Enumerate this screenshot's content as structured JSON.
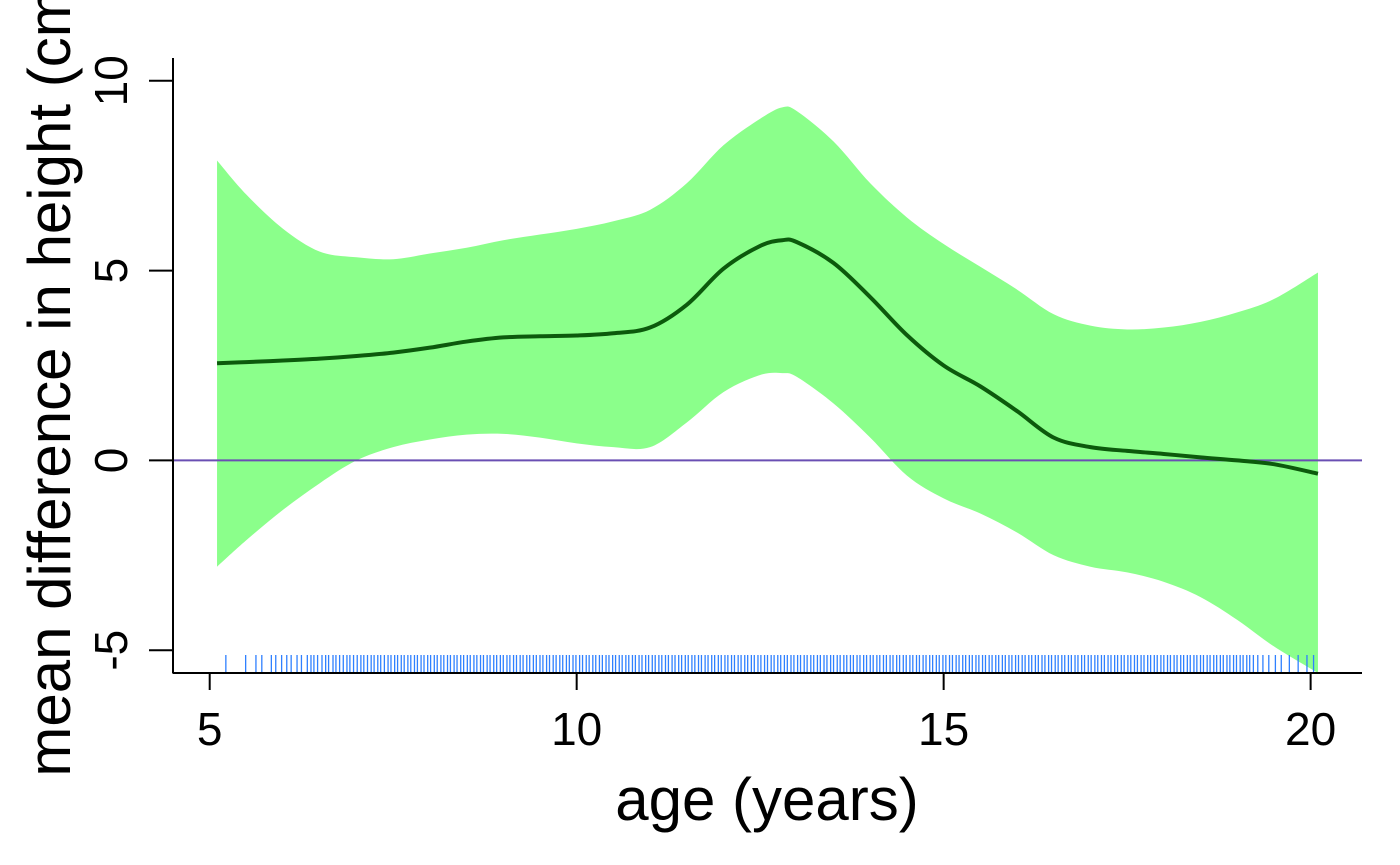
{
  "chart_data": {
    "type": "line",
    "title": "",
    "xlabel": "age (years)",
    "ylabel": "mean difference in height (cm)",
    "xlim": [
      4.5,
      20.7
    ],
    "ylim": [
      -5.6,
      10.6
    ],
    "xticks": [
      5,
      10,
      15,
      20
    ],
    "yticks": [
      -5,
      0,
      5,
      10
    ],
    "grid": false,
    "reference_line": {
      "y": 0,
      "color": "#6a4fb3"
    },
    "colors": {
      "band": "#8bff8b",
      "line": "#0c5a0c",
      "rug": "#2f80ff"
    },
    "series": [
      {
        "x": [
          5.1,
          5.5,
          6,
          6.5,
          7,
          7.5,
          8,
          8.5,
          9,
          9.5,
          10,
          10.5,
          11,
          11.5,
          12,
          12.5,
          12.8,
          13,
          13.5,
          14,
          14.5,
          15,
          15.5,
          16,
          16.5,
          17,
          17.5,
          18,
          18.5,
          19,
          19.5,
          20.1
        ],
        "values": [
          2.56,
          2.59,
          2.63,
          2.68,
          2.75,
          2.84,
          2.97,
          3.13,
          3.24,
          3.27,
          3.29,
          3.35,
          3.5,
          4.1,
          5.05,
          5.65,
          5.8,
          5.75,
          5.2,
          4.3,
          3.3,
          2.5,
          1.95,
          1.3,
          0.6,
          0.35,
          0.25,
          0.17,
          0.08,
          0.0,
          -0.1,
          -0.35
        ]
      }
    ],
    "band": {
      "x": [
        5.1,
        5.5,
        6,
        6.5,
        7,
        7.5,
        8,
        8.5,
        9,
        9.5,
        10,
        10.5,
        11,
        11.5,
        12,
        12.5,
        12.8,
        13,
        13.5,
        14,
        14.5,
        15,
        15.5,
        16,
        16.5,
        17,
        17.5,
        18,
        18.5,
        19,
        19.5,
        20.1
      ],
      "upper": [
        7.9,
        7.0,
        6.1,
        5.5,
        5.35,
        5.3,
        5.45,
        5.6,
        5.8,
        5.95,
        6.1,
        6.3,
        6.6,
        7.3,
        8.3,
        9.0,
        9.3,
        9.2,
        8.4,
        7.3,
        6.4,
        5.7,
        5.1,
        4.5,
        3.85,
        3.55,
        3.45,
        3.5,
        3.65,
        3.9,
        4.25,
        4.95
      ],
      "lower": [
        -2.8,
        -2.1,
        -1.3,
        -0.6,
        0.0,
        0.35,
        0.55,
        0.68,
        0.7,
        0.6,
        0.45,
        0.35,
        0.35,
        1.0,
        1.8,
        2.25,
        2.3,
        2.2,
        1.5,
        0.6,
        -0.4,
        -1.0,
        -1.4,
        -1.9,
        -2.5,
        -2.8,
        -2.95,
        -3.2,
        -3.6,
        -4.2,
        -4.9,
        -5.6
      ]
    },
    "rug": [
      5.22,
      5.49,
      5.63,
      5.71,
      5.84,
      5.9,
      5.98,
      6.05,
      6.11,
      6.19,
      6.25,
      6.33,
      6.38,
      6.42,
      6.47,
      6.53,
      6.58,
      6.62,
      6.68,
      6.72,
      6.77,
      6.82,
      6.87,
      6.91,
      6.96,
      7.01,
      7.06,
      7.1,
      7.15,
      7.2,
      7.24,
      7.29,
      7.33,
      7.38,
      7.43,
      7.47,
      7.52,
      7.56,
      7.61,
      7.65,
      7.7,
      7.74,
      7.79,
      7.83,
      7.88,
      7.92,
      7.97,
      8.01,
      8.06,
      8.1,
      8.15,
      8.19,
      8.24,
      8.28,
      8.33,
      8.37,
      8.42,
      8.46,
      8.51,
      8.55,
      8.6,
      8.64,
      8.69,
      8.73,
      8.78,
      8.82,
      8.87,
      8.91,
      8.96,
      9.0,
      9.05,
      9.09,
      9.14,
      9.18,
      9.23,
      9.27,
      9.32,
      9.36,
      9.41,
      9.45,
      9.5,
      9.54,
      9.59,
      9.63,
      9.68,
      9.72,
      9.77,
      9.81,
      9.86,
      9.9,
      9.95,
      9.99,
      10.04,
      10.08,
      10.13,
      10.17,
      10.22,
      10.26,
      10.31,
      10.35,
      10.4,
      10.44,
      10.49,
      10.53,
      10.58,
      10.62,
      10.67,
      10.71,
      10.76,
      10.8,
      10.85,
      10.89,
      10.94,
      10.98,
      11.03,
      11.07,
      11.12,
      11.16,
      11.21,
      11.25,
      11.3,
      11.34,
      11.39,
      11.43,
      11.48,
      11.52,
      11.57,
      11.61,
      11.66,
      11.7,
      11.75,
      11.79,
      11.84,
      11.88,
      11.93,
      11.97,
      12.02,
      12.06,
      12.11,
      12.15,
      12.2,
      12.24,
      12.29,
      12.33,
      12.38,
      12.42,
      12.47,
      12.51,
      12.56,
      12.6,
      12.65,
      12.69,
      12.74,
      12.78,
      12.83,
      12.87,
      12.92,
      12.96,
      13.01,
      13.05,
      13.1,
      13.14,
      13.19,
      13.23,
      13.28,
      13.32,
      13.37,
      13.41,
      13.46,
      13.5,
      13.55,
      13.59,
      13.64,
      13.68,
      13.73,
      13.77,
      13.82,
      13.86,
      13.91,
      13.95,
      14.0,
      14.04,
      14.09,
      14.13,
      14.18,
      14.22,
      14.27,
      14.31,
      14.36,
      14.4,
      14.45,
      14.49,
      14.54,
      14.58,
      14.63,
      14.67,
      14.72,
      14.76,
      14.81,
      14.85,
      14.9,
      14.94,
      14.99,
      15.03,
      15.08,
      15.12,
      15.17,
      15.21,
      15.26,
      15.3,
      15.35,
      15.39,
      15.44,
      15.48,
      15.53,
      15.57,
      15.62,
      15.66,
      15.71,
      15.75,
      15.8,
      15.84,
      15.89,
      15.93,
      15.98,
      16.02,
      16.07,
      16.11,
      16.16,
      16.2,
      16.25,
      16.29,
      16.34,
      16.38,
      16.43,
      16.47,
      16.52,
      16.56,
      16.61,
      16.65,
      16.7,
      16.74,
      16.79,
      16.83,
      16.88,
      16.92,
      16.97,
      17.01,
      17.06,
      17.1,
      17.15,
      17.19,
      17.24,
      17.28,
      17.33,
      17.37,
      17.42,
      17.46,
      17.51,
      17.55,
      17.6,
      17.64,
      17.69,
      17.73,
      17.78,
      17.82,
      17.87,
      17.91,
      17.96,
      18.0,
      18.05,
      18.09,
      18.14,
      18.18,
      18.23,
      18.27,
      18.32,
      18.36,
      18.41,
      18.45,
      18.5,
      18.54,
      18.59,
      18.63,
      18.68,
      18.72,
      18.77,
      18.81,
      18.86,
      18.9,
      18.95,
      18.99,
      19.04,
      19.08,
      19.13,
      19.17,
      19.22,
      19.28,
      19.35,
      19.43,
      19.52,
      19.6,
      19.71,
      19.83,
      19.95,
      20.04
    ]
  }
}
